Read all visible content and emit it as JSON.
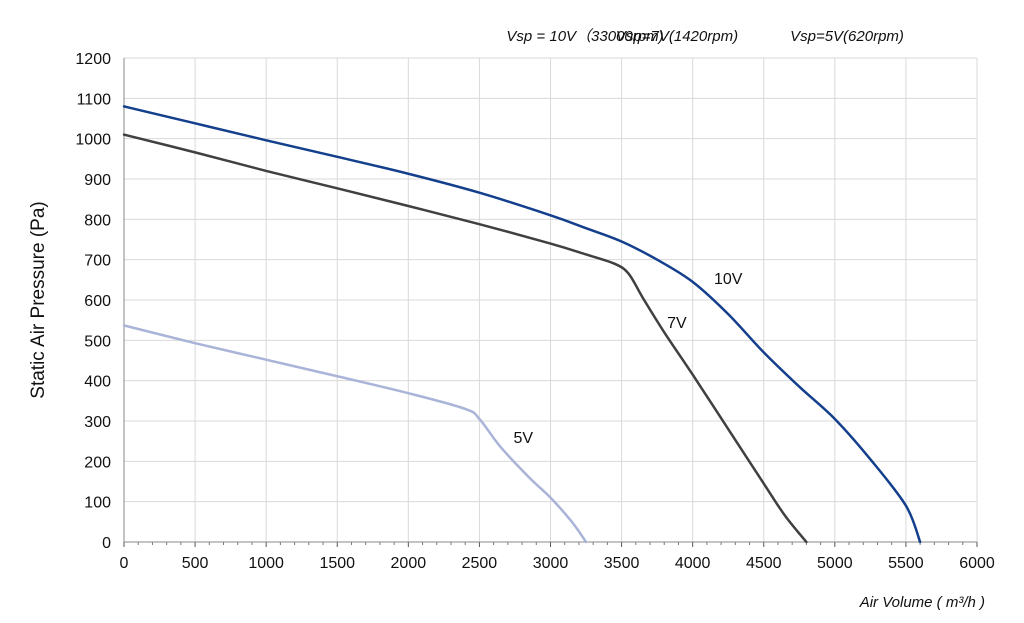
{
  "chart_data": {
    "type": "line",
    "header_labels": [
      "Vsp = 10V（33000rpm)",
      "Vsp=7V(1420rpm)",
      "Vsp=5V(620rpm)"
    ],
    "xlabel": "Air Volume ( m³/h )",
    "ylabel": "Static Air Pressure  (Pa)",
    "xlim": [
      0,
      6000
    ],
    "ylim": [
      0,
      1200
    ],
    "x_ticks": [
      0,
      500,
      1000,
      1500,
      2000,
      2500,
      3000,
      3500,
      4000,
      4500,
      5000,
      5500,
      6000
    ],
    "y_ticks": [
      0,
      100,
      200,
      300,
      400,
      500,
      600,
      700,
      800,
      900,
      1000,
      1100,
      1200
    ],
    "grid": true,
    "series": [
      {
        "name": "10V",
        "color": "#143f8c",
        "x": [
          0,
          500,
          1000,
          1500,
          2000,
          2500,
          3000,
          3250,
          3500,
          3750,
          4000,
          4250,
          4500,
          4750,
          5000,
          5250,
          5500,
          5600
        ],
        "y": [
          1080,
          1038,
          996,
          955,
          913,
          866,
          810,
          778,
          745,
          700,
          645,
          565,
          470,
          385,
          305,
          205,
          90,
          0
        ]
      },
      {
        "name": "7V",
        "color": "#404040",
        "x": [
          0,
          500,
          1000,
          1500,
          2000,
          2500,
          3000,
          3250,
          3450,
          3550,
          3650,
          3800,
          4000,
          4250,
          4500,
          4650,
          4800
        ],
        "y": [
          1010,
          966,
          920,
          877,
          833,
          788,
          740,
          713,
          690,
          665,
          605,
          520,
          415,
          280,
          145,
          65,
          0
        ]
      },
      {
        "name": "5V",
        "color": "#a9b4d8",
        "x": [
          0,
          500,
          1000,
          1500,
          2000,
          2400,
          2500,
          2650,
          2850,
          3000,
          3150,
          3250
        ],
        "y": [
          537,
          493,
          452,
          411,
          369,
          330,
          305,
          235,
          160,
          110,
          50,
          0
        ]
      }
    ],
    "curve_labels": [
      {
        "text": "10V",
        "x": 4150,
        "y": 640
      },
      {
        "text": "7V",
        "x": 3820,
        "y": 530
      },
      {
        "text": "5V",
        "x": 2740,
        "y": 245
      }
    ]
  }
}
